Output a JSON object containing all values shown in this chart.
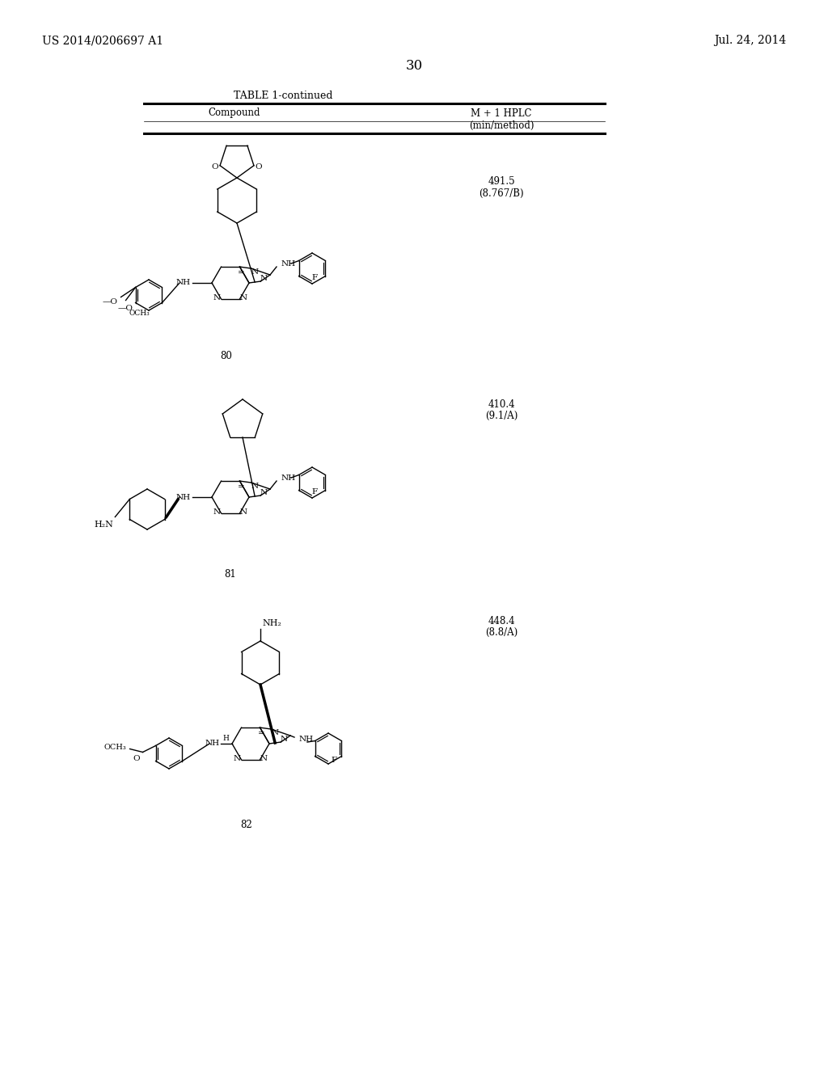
{
  "bg": "#ffffff",
  "tc": "#000000",
  "left_header": "US 2014/0206697 A1",
  "right_header": "Jul. 24, 2014",
  "page_num": "30",
  "table_title": "TABLE 1-continued",
  "col1": "Compound",
  "col2a": "M + 1 HPLC",
  "col2b": "(min/method)",
  "c80_v1": "491.5",
  "c80_v2": "(8.767/B)",
  "c80_num": "80",
  "c81_v1": "410.4",
  "c81_v2": "(9.1/A)",
  "c81_num": "81",
  "c82_v1": "448.4",
  "c82_v2": "(8.8/A)",
  "c82_num": "82"
}
